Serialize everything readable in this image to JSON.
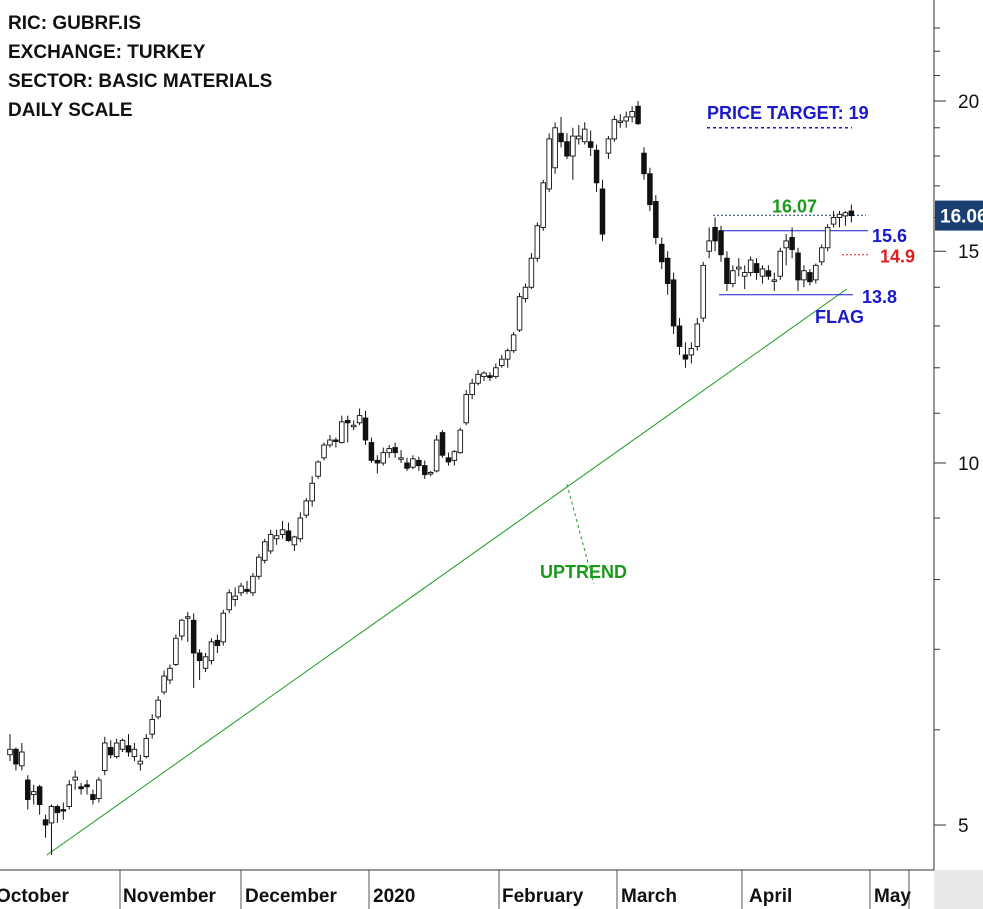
{
  "info": {
    "ric": "RIC: GUBRF.IS",
    "exchange": "EXCHANGE: TURKEY",
    "sector": "SECTOR: BASIC MATERIALS",
    "scale": "DAILY SCALE"
  },
  "chart_data": {
    "type": "candlestick",
    "scale": "log",
    "ylim": [
      4.7,
      23.5
    ],
    "y_ticks": [
      5,
      10,
      15,
      20
    ],
    "x_month_labels": [
      "October",
      "November",
      "December",
      "2020",
      "February",
      "March",
      "April",
      "May"
    ],
    "last_price_label": "16.06",
    "levels": [
      {
        "name": "upper",
        "value": 16.07,
        "label": "16.07",
        "color": "#1a9a1a"
      },
      {
        "name": "resistance",
        "value": 15.6,
        "label": "15.6",
        "color": "#1a1acc"
      },
      {
        "name": "stop",
        "value": 14.9,
        "label": "14.9",
        "color": "#e02020"
      },
      {
        "name": "support",
        "value": 13.8,
        "label": "13.8",
        "color": "#1a1acc"
      },
      {
        "name": "target",
        "value": 19,
        "label": "PRICE TARGET: 19",
        "color": "#1a1acc"
      }
    ],
    "annotations": {
      "uptrend": "UPTREND",
      "flag": "FLAG"
    },
    "colors": {
      "uptrend": "#1a9a1a",
      "candle": "#111111",
      "last_price_box": "#1b3f73"
    },
    "candles": [
      [
        5.72,
        5.95,
        5.65,
        5.78
      ],
      [
        5.78,
        5.8,
        5.55,
        5.62
      ],
      [
        5.6,
        5.85,
        5.55,
        5.75
      ],
      [
        5.45,
        5.5,
        5.15,
        5.25
      ],
      [
        5.3,
        5.4,
        5.2,
        5.33
      ],
      [
        5.38,
        5.4,
        5.1,
        5.2
      ],
      [
        5.05,
        5.1,
        4.88,
        5.0
      ],
      [
        5.02,
        5.2,
        4.72,
        5.18
      ],
      [
        5.18,
        5.2,
        5.02,
        5.12
      ],
      [
        5.15,
        5.22,
        5.05,
        5.14
      ],
      [
        5.18,
        5.45,
        5.15,
        5.4
      ],
      [
        5.45,
        5.55,
        5.35,
        5.48
      ],
      [
        5.38,
        5.42,
        5.3,
        5.36
      ],
      [
        5.4,
        5.45,
        5.3,
        5.38
      ],
      [
        5.3,
        5.35,
        5.2,
        5.25
      ],
      [
        5.26,
        5.48,
        5.22,
        5.45
      ],
      [
        5.55,
        5.92,
        5.5,
        5.85
      ],
      [
        5.8,
        5.88,
        5.68,
        5.72
      ],
      [
        5.7,
        5.9,
        5.68,
        5.85
      ],
      [
        5.78,
        5.9,
        5.75,
        5.88
      ],
      [
        5.82,
        5.95,
        5.7,
        5.75
      ],
      [
        5.7,
        5.85,
        5.65,
        5.78
      ],
      [
        5.62,
        5.72,
        5.55,
        5.65
      ],
      [
        5.7,
        5.95,
        5.68,
        5.9
      ],
      [
        5.95,
        6.18,
        5.9,
        6.12
      ],
      [
        6.15,
        6.4,
        6.12,
        6.35
      ],
      [
        6.45,
        6.72,
        6.42,
        6.65
      ],
      [
        6.6,
        6.8,
        6.55,
        6.75
      ],
      [
        6.8,
        7.2,
        6.78,
        7.15
      ],
      [
        7.18,
        7.42,
        7.12,
        7.4
      ],
      [
        7.45,
        7.52,
        7.1,
        7.45
      ],
      [
        7.4,
        7.5,
        6.5,
        6.95
      ],
      [
        6.95,
        7.0,
        6.6,
        6.85
      ],
      [
        6.75,
        6.95,
        6.7,
        6.9
      ],
      [
        6.85,
        7.15,
        6.8,
        7.1
      ],
      [
        7.12,
        7.2,
        6.95,
        7.05
      ],
      [
        7.1,
        7.55,
        7.05,
        7.5
      ],
      [
        7.55,
        7.85,
        7.5,
        7.8
      ],
      [
        7.7,
        7.88,
        7.6,
        7.75
      ],
      [
        7.8,
        7.95,
        7.75,
        7.9
      ],
      [
        7.85,
        7.98,
        7.78,
        7.82
      ],
      [
        7.8,
        8.1,
        7.75,
        8.05
      ],
      [
        8.05,
        8.4,
        8.0,
        8.35
      ],
      [
        8.3,
        8.65,
        8.25,
        8.6
      ],
      [
        8.45,
        8.8,
        8.4,
        8.72
      ],
      [
        8.65,
        8.8,
        8.55,
        8.7
      ],
      [
        8.72,
        8.95,
        8.65,
        8.8
      ],
      [
        8.78,
        8.92,
        8.6,
        8.62
      ],
      [
        8.55,
        8.7,
        8.45,
        8.68
      ],
      [
        8.65,
        9.1,
        8.6,
        9.0
      ],
      [
        9.05,
        9.35,
        9.0,
        9.3
      ],
      [
        9.3,
        9.75,
        9.2,
        9.62
      ],
      [
        9.75,
        10.05,
        9.7,
        10.02
      ],
      [
        10.1,
        10.4,
        10.05,
        10.35
      ],
      [
        10.35,
        10.55,
        10.3,
        10.45
      ],
      [
        10.45,
        10.5,
        10.3,
        10.42
      ],
      [
        10.4,
        10.95,
        10.38,
        10.82
      ],
      [
        10.85,
        10.95,
        10.4,
        10.8
      ],
      [
        10.75,
        10.85,
        10.65,
        10.75
      ],
      [
        10.8,
        11.1,
        10.75,
        10.95
      ],
      [
        10.9,
        11.05,
        10.35,
        10.45
      ],
      [
        10.4,
        10.5,
        10.0,
        10.05
      ],
      [
        10.05,
        10.15,
        9.8,
        10.0
      ],
      [
        10.0,
        10.3,
        9.95,
        10.2
      ],
      [
        10.2,
        10.35,
        10.1,
        10.28
      ],
      [
        10.3,
        10.4,
        10.1,
        10.2
      ],
      [
        10.1,
        10.25,
        10.0,
        10.1
      ],
      [
        10.0,
        10.1,
        9.85,
        9.9
      ],
      [
        9.92,
        10.15,
        9.88,
        10.08
      ],
      [
        10.05,
        10.12,
        9.85,
        9.95
      ],
      [
        9.95,
        10.05,
        9.7,
        9.78
      ],
      [
        9.8,
        9.85,
        9.75,
        9.82
      ],
      [
        9.85,
        10.55,
        9.82,
        10.45
      ],
      [
        10.6,
        10.65,
        10.1,
        10.15
      ],
      [
        10.1,
        10.2,
        9.95,
        10.02
      ],
      [
        10.05,
        10.25,
        9.95,
        10.22
      ],
      [
        10.2,
        10.7,
        10.18,
        10.65
      ],
      [
        10.8,
        11.5,
        10.75,
        11.4
      ],
      [
        11.4,
        11.75,
        11.3,
        11.65
      ],
      [
        11.65,
        11.95,
        11.6,
        11.85
      ],
      [
        11.8,
        11.92,
        11.7,
        11.88
      ],
      [
        11.82,
        11.9,
        11.7,
        11.78
      ],
      [
        11.8,
        12.1,
        11.75,
        12.0
      ],
      [
        12.05,
        12.3,
        12.0,
        12.2
      ],
      [
        12.2,
        12.45,
        12.0,
        12.4
      ],
      [
        12.4,
        12.85,
        12.35,
        12.78
      ],
      [
        12.9,
        13.85,
        12.85,
        13.75
      ],
      [
        13.7,
        14.1,
        13.6,
        14.0
      ],
      [
        14.0,
        14.95,
        13.95,
        14.8
      ],
      [
        14.8,
        15.85,
        14.7,
        15.75
      ],
      [
        15.7,
        17.2,
        15.6,
        17.1
      ],
      [
        16.9,
        18.8,
        16.8,
        18.6
      ],
      [
        17.6,
        19.2,
        17.4,
        19.0
      ],
      [
        18.8,
        19.4,
        18.3,
        18.5
      ],
      [
        18.5,
        18.8,
        17.9,
        18.0
      ],
      [
        18.0,
        19.0,
        17.2,
        18.7
      ],
      [
        18.6,
        19.1,
        18.4,
        18.7
      ],
      [
        18.5,
        19.2,
        18.4,
        18.95
      ],
      [
        18.5,
        18.9,
        18.0,
        18.3
      ],
      [
        18.2,
        18.4,
        16.8,
        17.1
      ],
      [
        16.9,
        17.2,
        15.3,
        15.5
      ],
      [
        18.1,
        18.7,
        17.9,
        18.6
      ],
      [
        18.6,
        19.45,
        18.5,
        19.3
      ],
      [
        19.2,
        19.5,
        19.0,
        19.25
      ],
      [
        19.25,
        19.6,
        19.0,
        19.4
      ],
      [
        19.4,
        19.8,
        19.2,
        19.6
      ],
      [
        19.8,
        20.0,
        19.1,
        19.15
      ],
      [
        18.1,
        18.3,
        17.2,
        17.4
      ],
      [
        17.4,
        17.6,
        16.2,
        16.4
      ],
      [
        16.5,
        16.7,
        15.2,
        15.4
      ],
      [
        15.2,
        15.4,
        14.5,
        14.7
      ],
      [
        14.8,
        15.0,
        13.8,
        14.1
      ],
      [
        14.2,
        14.4,
        12.8,
        13.0
      ],
      [
        13.0,
        13.2,
        12.3,
        12.5
      ],
      [
        12.3,
        12.6,
        12.0,
        12.2
      ],
      [
        12.3,
        12.6,
        12.1,
        12.45
      ],
      [
        12.5,
        13.2,
        12.4,
        13.05
      ],
      [
        13.2,
        14.7,
        13.1,
        14.6
      ],
      [
        15.0,
        15.7,
        14.8,
        15.3
      ],
      [
        15.7,
        16.0,
        15.0,
        15.3
      ],
      [
        15.6,
        15.75,
        14.7,
        14.9
      ],
      [
        14.8,
        15.0,
        13.9,
        14.1
      ],
      [
        14.1,
        14.6,
        14.0,
        14.45
      ],
      [
        14.5,
        14.8,
        14.3,
        14.55
      ],
      [
        14.3,
        14.6,
        13.95,
        14.4
      ],
      [
        14.4,
        14.85,
        14.3,
        14.75
      ],
      [
        14.65,
        14.8,
        14.2,
        14.4
      ],
      [
        14.3,
        14.6,
        14.1,
        14.5
      ],
      [
        14.45,
        14.6,
        14.2,
        14.3
      ],
      [
        14.2,
        14.4,
        13.9,
        14.2
      ],
      [
        14.3,
        15.1,
        14.2,
        15.0
      ],
      [
        15.1,
        15.5,
        14.6,
        15.3
      ],
      [
        15.4,
        15.7,
        14.8,
        15.05
      ],
      [
        14.95,
        15.1,
        13.9,
        14.2
      ],
      [
        14.2,
        14.6,
        14.0,
        14.45
      ],
      [
        14.4,
        14.5,
        14.05,
        14.15
      ],
      [
        14.2,
        14.65,
        14.1,
        14.6
      ],
      [
        14.7,
        15.2,
        14.6,
        15.1
      ],
      [
        15.1,
        15.8,
        15.0,
        15.7
      ],
      [
        15.8,
        16.2,
        15.7,
        16.0
      ],
      [
        16.0,
        16.2,
        15.7,
        16.1
      ],
      [
        16.05,
        16.2,
        15.75,
        16.15
      ],
      [
        16.2,
        16.4,
        15.85,
        16.06
      ]
    ]
  }
}
